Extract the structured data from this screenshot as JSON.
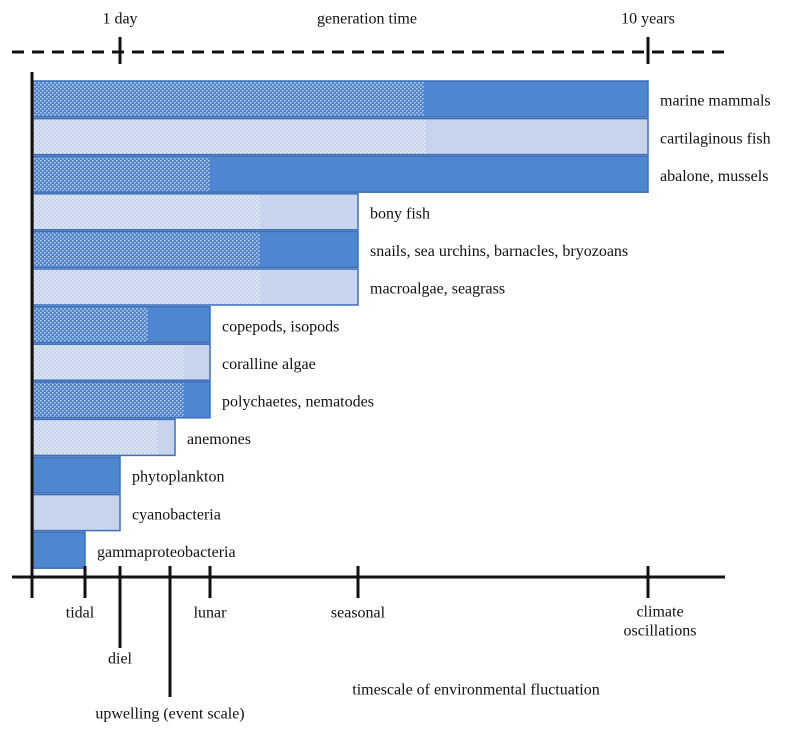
{
  "top_axis": {
    "title": "generation time",
    "ticks": [
      "1 day",
      "10 years"
    ]
  },
  "bottom_axis": {
    "title": "timescale of environmental fluctuation",
    "ticks": [
      {
        "text": "tidal"
      },
      {
        "text": "diel"
      },
      {
        "text": "upwelling (event scale)"
      },
      {
        "text": "lunar"
      },
      {
        "text": "seasonal"
      },
      {
        "lines": [
          "climate",
          "oscillations"
        ]
      }
    ]
  },
  "groups": [
    "marine mammals",
    "cartilaginous fish",
    "abalone, mussels",
    "bony fish",
    "snails, sea urchins, barnacles, bryozoans",
    "macroalgae, seagrass",
    "copepods, isopods",
    "coralline algae",
    "polychaetes, nematodes",
    "anemones",
    "phytoplankton",
    "cyanobacteria",
    "gammaproteobacteria"
  ]
}
